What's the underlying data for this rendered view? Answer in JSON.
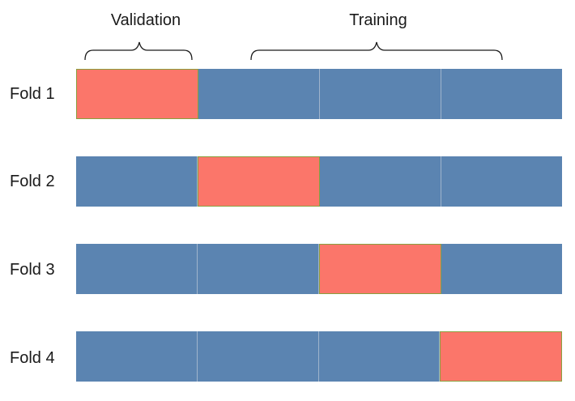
{
  "legend": {
    "validation_label": "Validation",
    "training_label": "Training"
  },
  "folds": [
    {
      "label": "Fold 1",
      "validation_index": 0
    },
    {
      "label": "Fold 2",
      "validation_index": 1
    },
    {
      "label": "Fold 3",
      "validation_index": 2
    },
    {
      "label": "Fold 4",
      "validation_index": 3
    }
  ],
  "segments_per_fold": 4,
  "colors": {
    "validation": "#fb766a",
    "training": "#5b84b1",
    "bracket": "#1a1a1a"
  }
}
